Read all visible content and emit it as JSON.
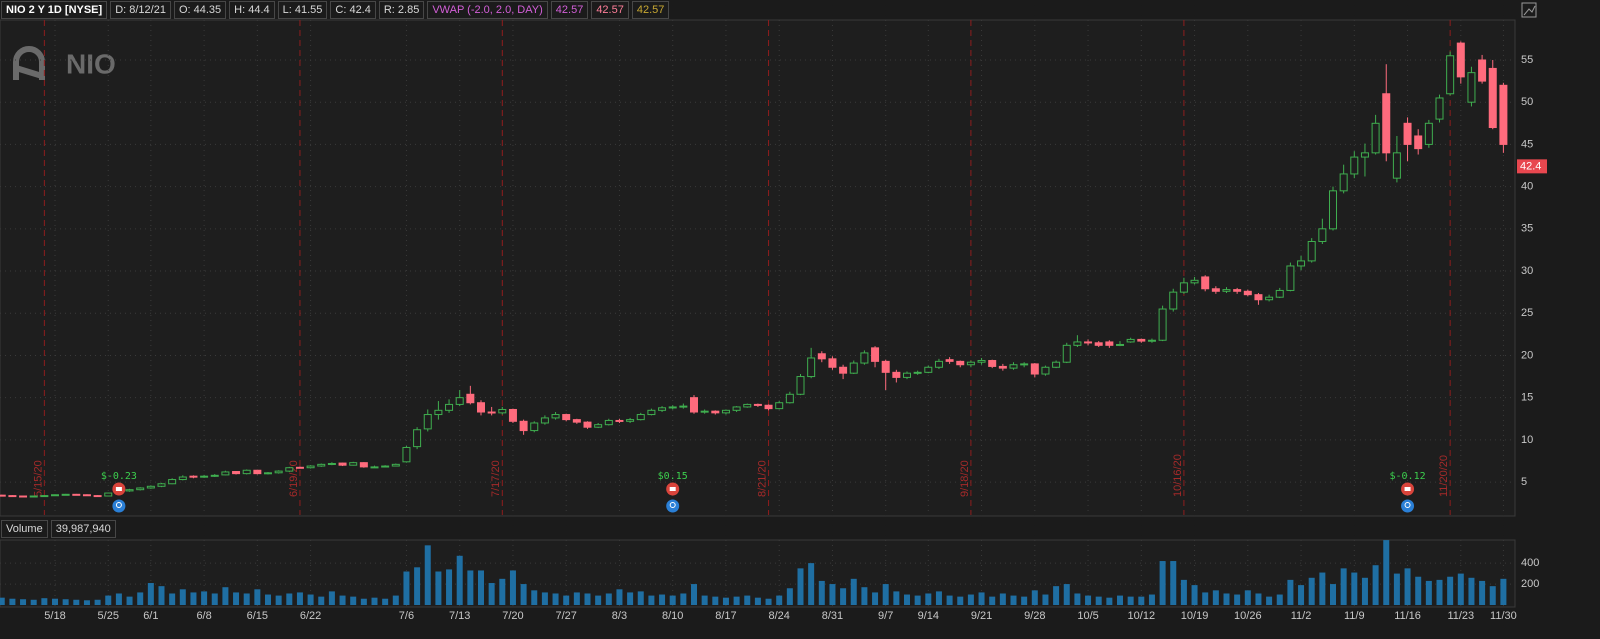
{
  "header": {
    "symbol": "NIO 2 Y 1D [NYSE]",
    "fields": [
      "D: 8/12/21",
      "O: 44.35",
      "H: 44.4",
      "L: 41.55",
      "C: 42.4",
      "R: 2.85"
    ],
    "study": "VWAP (-2.0, 2.0, DAY)",
    "study_color": "#d35fd8",
    "study_values": [
      {
        "text": "42.57",
        "color": "#d35fd8"
      },
      {
        "text": "42.57",
        "color": "#ff7f9a"
      },
      {
        "text": "42.57",
        "color": "#c8a832"
      }
    ]
  },
  "chart_data": [
    {
      "type": "candlestick",
      "watermark": "NIO",
      "categories": [
        null,
        null,
        null,
        null,
        null,
        "5/18",
        null,
        null,
        null,
        null,
        "5/25",
        null,
        null,
        null,
        "6/1",
        null,
        null,
        null,
        null,
        "6/8",
        null,
        null,
        null,
        null,
        "6/15",
        null,
        null,
        null,
        null,
        "6/22",
        null,
        null,
        null,
        null,
        null,
        null,
        null,
        null,
        "7/6",
        null,
        null,
        null,
        null,
        "7/13",
        null,
        null,
        null,
        null,
        "7/20",
        null,
        null,
        null,
        null,
        "7/27",
        null,
        null,
        null,
        null,
        "8/3",
        null,
        null,
        null,
        null,
        "8/10",
        null,
        null,
        null,
        null,
        "8/17",
        null,
        null,
        null,
        null,
        "8/24",
        null,
        null,
        null,
        null,
        "8/31",
        null,
        null,
        null,
        null,
        "9/7",
        null,
        null,
        null,
        "9/14",
        null,
        null,
        null,
        null,
        "9/21",
        null,
        null,
        null,
        null,
        "9/28",
        null,
        null,
        null,
        null,
        "10/5",
        null,
        null,
        null,
        null,
        "10/12",
        null,
        null,
        null,
        null,
        "10/19",
        null,
        null,
        null,
        null,
        "10/26",
        null,
        null,
        null,
        null,
        "11/2",
        null,
        null,
        null,
        null,
        "11/9",
        null,
        null,
        null,
        null,
        "11/16",
        null,
        null,
        null,
        null,
        "11/23",
        null,
        null,
        null,
        "11/30"
      ],
      "open": [
        3.45,
        3.4,
        3.35,
        3.3,
        3.35,
        3.4,
        3.5,
        3.55,
        3.5,
        3.4,
        3.35,
        3.7,
        3.95,
        4.1,
        4.3,
        4.5,
        4.8,
        5.3,
        5.7,
        5.6,
        5.7,
        5.85,
        6.25,
        6.0,
        6.4,
        6.0,
        6.1,
        6.3,
        6.75,
        6.7,
        6.9,
        7.1,
        7.25,
        7.0,
        7.3,
        6.8,
        6.8,
        6.9,
        7.4,
        9.2,
        11.3,
        13.0,
        13.5,
        14.2,
        15.4,
        14.4,
        13.3,
        13.2,
        13.6,
        12.2,
        11.1,
        12.0,
        12.6,
        13.0,
        12.4,
        12.1,
        11.5,
        11.8,
        12.3,
        12.2,
        12.4,
        13.0,
        13.5,
        13.8,
        13.9,
        15.0,
        13.3,
        13.4,
        13.2,
        13.5,
        13.9,
        14.2,
        14.1,
        13.7,
        14.4,
        15.4,
        17.5,
        20.2,
        19.6,
        18.6,
        17.9,
        19.1,
        20.9,
        19.3,
        18.0,
        17.4,
        17.9,
        18.0,
        18.6,
        19.5,
        19.3,
        18.9,
        19.2,
        19.4,
        18.7,
        18.5,
        18.9,
        19.0,
        17.8,
        18.6,
        19.2,
        21.2,
        21.6,
        21.5,
        21.6,
        21.3,
        21.6,
        21.9,
        21.7,
        21.8,
        25.5,
        27.5,
        28.6,
        29.3,
        27.9,
        27.6,
        27.8,
        27.6,
        27.2,
        26.6,
        26.9,
        27.7,
        30.6,
        31.2,
        33.5,
        35.0,
        39.5,
        41.5,
        43.5,
        44.0,
        51.0,
        41.0,
        47.5,
        46.0,
        45.0,
        48.0,
        51.0,
        57.0,
        50.0,
        55.0,
        54.0,
        52.0
      ],
      "high": [
        3.5,
        3.45,
        3.4,
        3.4,
        3.45,
        3.55,
        3.6,
        3.6,
        3.55,
        3.45,
        3.75,
        4.0,
        4.2,
        4.4,
        4.6,
        4.9,
        5.45,
        5.8,
        5.8,
        5.85,
        5.95,
        6.35,
        6.3,
        6.5,
        6.45,
        6.2,
        6.4,
        6.8,
        6.85,
        7.0,
        7.2,
        7.35,
        7.3,
        7.4,
        7.35,
        6.95,
        7.0,
        7.2,
        9.3,
        11.5,
        13.6,
        14.6,
        14.8,
        15.9,
        16.4,
        14.7,
        13.9,
        13.9,
        13.7,
        12.4,
        12.2,
        12.9,
        13.3,
        13.1,
        12.5,
        12.2,
        12.0,
        12.5,
        12.5,
        12.6,
        13.2,
        13.7,
        14.0,
        14.1,
        14.3,
        15.3,
        13.6,
        13.5,
        13.6,
        14.0,
        14.3,
        14.3,
        14.2,
        14.6,
        15.7,
        17.8,
        20.9,
        20.5,
        19.9,
        18.9,
        19.4,
        20.6,
        21.1,
        19.5,
        18.3,
        18.1,
        18.2,
        18.8,
        19.6,
        19.8,
        19.4,
        19.4,
        19.7,
        19.5,
        19.0,
        19.2,
        19.2,
        19.1,
        18.8,
        19.4,
        21.5,
        22.4,
        21.9,
        21.7,
        21.8,
        21.7,
        22.1,
        22.0,
        22.0,
        25.9,
        27.9,
        29.2,
        29.3,
        29.5,
        28.2,
        28.1,
        28.0,
        27.8,
        27.4,
        27.2,
        28.0,
        31.0,
        31.8,
        33.9,
        36.2,
        40.0,
        42.6,
        44.2,
        45.1,
        48.5,
        54.5,
        46.0,
        48.2,
        46.8,
        47.9,
        50.9,
        56.0,
        57.2,
        54.2,
        55.6,
        55.0,
        52.3
      ],
      "low": [
        3.35,
        3.3,
        3.25,
        3.25,
        3.3,
        3.35,
        3.45,
        3.45,
        3.35,
        3.25,
        3.3,
        3.6,
        3.85,
        4.0,
        4.2,
        4.4,
        4.75,
        5.2,
        5.45,
        5.5,
        5.6,
        5.8,
        5.9,
        5.9,
        5.9,
        5.9,
        6.0,
        6.2,
        6.6,
        6.6,
        6.8,
        7.0,
        6.9,
        6.95,
        6.7,
        6.7,
        6.75,
        6.85,
        7.3,
        8.9,
        11.0,
        12.4,
        13.2,
        14.0,
        14.2,
        12.9,
        12.9,
        13.0,
        12.0,
        10.6,
        10.9,
        11.8,
        12.4,
        12.2,
        11.9,
        11.3,
        11.4,
        11.7,
        12.0,
        12.0,
        12.3,
        12.9,
        13.3,
        13.6,
        13.7,
        13.1,
        13.1,
        13.0,
        13.0,
        13.3,
        13.8,
        13.9,
        13.5,
        13.6,
        14.3,
        15.3,
        17.3,
        19.2,
        18.3,
        17.2,
        17.8,
        18.9,
        18.6,
        15.9,
        16.8,
        17.2,
        17.7,
        17.9,
        18.4,
        19.0,
        18.6,
        18.6,
        18.9,
        18.5,
        18.2,
        18.3,
        18.6,
        17.4,
        17.6,
        18.5,
        19.1,
        21.0,
        21.2,
        21.0,
        20.9,
        21.1,
        21.5,
        21.5,
        21.5,
        21.7,
        25.2,
        27.3,
        28.4,
        27.6,
        27.3,
        27.4,
        27.3,
        27.0,
        26.0,
        26.4,
        26.8,
        27.6,
        30.1,
        31.0,
        33.2,
        34.8,
        39.2,
        41.0,
        41.2,
        43.8,
        43.0,
        40.5,
        43.0,
        43.8,
        44.6,
        47.6,
        50.8,
        52.2,
        49.5,
        52.2,
        46.8,
        44.0
      ],
      "close": [
        3.4,
        3.35,
        3.3,
        3.35,
        3.4,
        3.5,
        3.55,
        3.5,
        3.4,
        3.3,
        3.7,
        3.9,
        4.1,
        4.3,
        4.5,
        4.8,
        5.3,
        5.6,
        5.6,
        5.7,
        5.8,
        6.2,
        6.0,
        6.4,
        6.0,
        6.1,
        6.3,
        6.7,
        6.7,
        6.9,
        7.1,
        7.2,
        7.0,
        7.3,
        6.8,
        6.8,
        6.9,
        7.1,
        9.1,
        11.2,
        13.0,
        13.5,
        14.2,
        15.0,
        14.4,
        13.3,
        13.2,
        13.6,
        12.2,
        11.1,
        12.0,
        12.6,
        13.0,
        12.4,
        12.1,
        11.5,
        11.8,
        12.3,
        12.2,
        12.4,
        13.0,
        13.5,
        13.8,
        13.9,
        14.0,
        13.3,
        13.4,
        13.2,
        13.5,
        13.9,
        14.2,
        14.1,
        13.7,
        14.4,
        15.4,
        17.5,
        19.7,
        19.6,
        18.6,
        17.9,
        19.1,
        20.3,
        19.3,
        18.0,
        17.4,
        17.9,
        18.0,
        18.6,
        19.3,
        19.3,
        18.9,
        19.2,
        19.4,
        18.7,
        18.5,
        18.9,
        19.0,
        17.8,
        18.6,
        19.2,
        21.2,
        21.6,
        21.5,
        21.2,
        21.2,
        21.3,
        21.9,
        21.7,
        21.8,
        25.5,
        27.5,
        28.6,
        28.9,
        27.9,
        27.6,
        27.8,
        27.6,
        27.2,
        26.6,
        26.9,
        27.7,
        30.6,
        31.2,
        33.5,
        35.0,
        39.5,
        41.5,
        43.5,
        44.0,
        47.5,
        44.0,
        44.0,
        45.0,
        44.5,
        47.5,
        50.5,
        55.5,
        53.0,
        53.5,
        52.5,
        47.0,
        45.0
      ],
      "up_color": "#3fae4f",
      "down_color": "#ff6b7d",
      "ylim": [
        1.1,
        59.5
      ],
      "yticks": [
        5,
        10,
        15,
        20,
        25,
        30,
        35,
        40,
        45,
        50,
        55
      ],
      "grid": true,
      "last_price": 42.4,
      "last_price_color": "#e8474f",
      "expirations": [
        {
          "label": "5/15/20",
          "at": 4
        },
        {
          "label": "6/19/20",
          "at": 28
        },
        {
          "label": "7/17/20",
          "at": 47
        },
        {
          "label": "8/21/20",
          "at": 72
        },
        {
          "label": "9/18/20",
          "at": 91
        },
        {
          "label": "10/16/20",
          "at": 111
        },
        {
          "label": "11/20/20",
          "at": 136
        }
      ],
      "events": [
        {
          "label": "$-0.23",
          "at": 11
        },
        {
          "label": "$0.15",
          "at": 63
        },
        {
          "label": "$-0.12",
          "at": 132
        }
      ]
    },
    {
      "type": "bar",
      "title": "Volume",
      "subtitle": "39,987,940",
      "color": "#1f6fa3",
      "values": [
        70,
        60,
        55,
        50,
        65,
        60,
        55,
        50,
        45,
        50,
        90,
        110,
        80,
        120,
        210,
        180,
        110,
        150,
        120,
        130,
        110,
        170,
        120,
        110,
        150,
        100,
        90,
        110,
        120,
        100,
        80,
        130,
        90,
        80,
        60,
        70,
        60,
        90,
        320,
        360,
        570,
        320,
        340,
        470,
        330,
        330,
        210,
        250,
        330,
        200,
        140,
        120,
        110,
        90,
        120,
        110,
        90,
        110,
        150,
        120,
        130,
        90,
        100,
        90,
        110,
        200,
        90,
        80,
        70,
        80,
        90,
        70,
        60,
        90,
        160,
        350,
        400,
        230,
        200,
        160,
        250,
        170,
        120,
        200,
        130,
        100,
        90,
        110,
        130,
        90,
        80,
        100,
        120,
        80,
        110,
        90,
        80,
        140,
        100,
        180,
        200,
        110,
        90,
        80,
        70,
        90,
        80,
        80,
        100,
        420,
        420,
        240,
        190,
        120,
        140,
        110,
        100,
        140,
        110,
        80,
        100,
        240,
        190,
        260,
        310,
        200,
        350,
        310,
        260,
        380,
        620,
        300,
        350,
        270,
        230,
        240,
        270,
        300,
        260,
        230,
        180,
        250
      ],
      "ylim": [
        0,
        640
      ],
      "yticks": [
        200,
        400
      ]
    }
  ]
}
